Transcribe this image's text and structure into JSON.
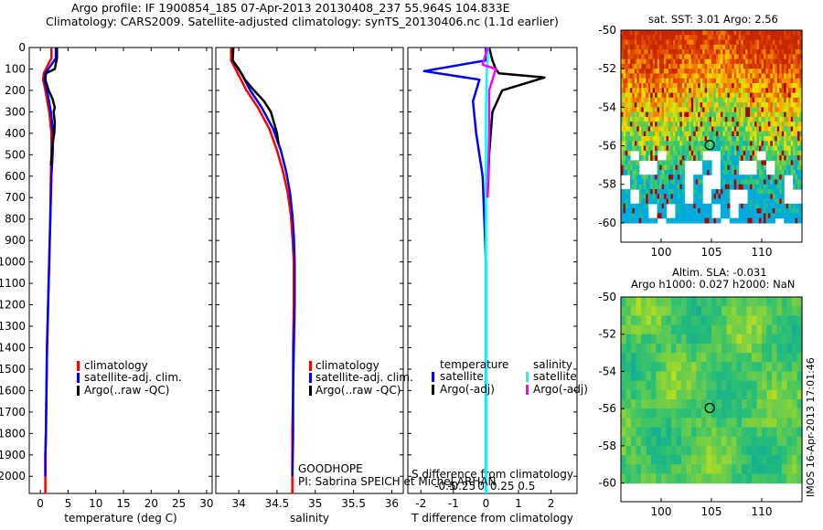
{
  "title": {
    "line1": "Argo profile: IF 1900854_185 07-Apr-2013 20130408_237 55.964S 104.833E",
    "line2": "Climatology: CARS2009. Satellite-adjusted climatology: synTS_20130406.nc (1.1d earlier)"
  },
  "colors": {
    "climatology": "#ff0000",
    "satellite": "#0000ff",
    "argo": "#000000",
    "satellite_diff": "#00ffff",
    "argo_adj_diff": "#ff00ff"
  },
  "pi": {
    "line1": "GOODHOPE",
    "line2": "PI: Sabrina SPEICH et Michel ARHAN"
  },
  "sst_title": "sat. SST: 3.01  Argo: 2.56",
  "sla_title": {
    "line1": "Altim. SLA: -0.031",
    "line2": "Argo h1000: 0.027 h2000: NaN"
  },
  "timestamp": "IMOS 16-Apr-2013 17:01:46",
  "legend_profiles": [
    "climatology",
    "satellite-adj. clim.",
    "Argo(..raw -QC)"
  ],
  "legend_diff": {
    "temp_header": "temperature",
    "sal_header": "salinity",
    "satellite": "satellite",
    "argo_adj": "Argo(-adj)"
  },
  "chart_data": [
    {
      "id": "temp",
      "type": "line",
      "xlabel": "temperature (deg C)",
      "ylabel": "",
      "xlim": [
        -2,
        31
      ],
      "ylim": [
        2080,
        0
      ],
      "xticks": [
        0,
        5,
        10,
        15,
        20,
        25,
        30
      ],
      "yticks": [
        0,
        100,
        200,
        300,
        400,
        500,
        600,
        700,
        800,
        900,
        1000,
        1100,
        1200,
        1300,
        1400,
        1500,
        1600,
        1700,
        1800,
        1900,
        2000
      ],
      "series": [
        {
          "name": "climatology",
          "color": "#ff0000",
          "x": [
            2.0,
            2.0,
            0.6,
            0.5,
            0.9,
            1.6,
            2.0,
            2.0,
            1.9,
            1.8,
            1.6,
            1.4,
            1.2,
            1.1,
            1.0,
            0.9,
            0.9,
            0.9
          ],
          "y": [
            0,
            50,
            120,
            150,
            200,
            300,
            400,
            500,
            600,
            800,
            1000,
            1200,
            1400,
            1600,
            1800,
            1900,
            2000,
            2080
          ]
        },
        {
          "name": "satellite-adj. clim.",
          "color": "#0000ff",
          "x": [
            2.8,
            2.8,
            0.9,
            0.7,
            1.2,
            1.9,
            2.3,
            2.2,
            2.0,
            1.8,
            1.6,
            1.4,
            1.2,
            1.1,
            1.0,
            0.9,
            0.9
          ],
          "y": [
            0,
            50,
            120,
            150,
            200,
            300,
            400,
            500,
            600,
            800,
            1000,
            1200,
            1400,
            1600,
            1800,
            1900,
            2000
          ]
        },
        {
          "name": "Argo(..raw -QC)",
          "color": "#000000",
          "x": [
            3.0,
            3.0,
            2.6,
            1.0,
            0.9,
            1.5,
            2.2,
            2.6,
            2.4,
            2.6,
            2.5,
            2.2,
            2.1,
            1.9
          ],
          "y": [
            0,
            50,
            100,
            120,
            150,
            200,
            240,
            280,
            300,
            350,
            400,
            450,
            500,
            550
          ]
        }
      ]
    },
    {
      "id": "sal",
      "type": "line",
      "xlabel": "salinity",
      "ylabel": "",
      "xlim": [
        33.7,
        36.15
      ],
      "ylim": [
        2080,
        0
      ],
      "xticks": [
        34,
        34.5,
        35,
        35.5,
        36
      ],
      "xtick_labels": [
        "34",
        "34.5",
        "35",
        "35.5",
        "36"
      ],
      "series": [
        {
          "name": "climatology",
          "color": "#ff0000",
          "x": [
            33.9,
            33.9,
            34.0,
            34.1,
            34.25,
            34.4,
            34.5,
            34.58,
            34.64,
            34.68,
            34.7,
            34.72,
            34.72,
            34.71,
            34.71,
            34.7,
            34.7,
            34.7
          ],
          "y": [
            0,
            60,
            130,
            200,
            280,
            380,
            480,
            580,
            680,
            780,
            880,
            1000,
            1200,
            1400,
            1600,
            1800,
            2000,
            2080
          ]
        },
        {
          "name": "satellite-adj. clim.",
          "color": "#0000ff",
          "x": [
            33.92,
            33.92,
            34.05,
            34.15,
            34.3,
            34.45,
            34.55,
            34.62,
            34.67,
            34.7,
            34.72,
            34.73,
            34.73,
            34.72,
            34.71,
            34.71,
            34.7
          ],
          "y": [
            0,
            60,
            130,
            200,
            280,
            380,
            480,
            580,
            680,
            780,
            880,
            1000,
            1200,
            1400,
            1600,
            1800,
            2000
          ]
        },
        {
          "name": "Argo(..raw -QC)",
          "color": "#000000",
          "x": [
            33.93,
            33.92,
            34.0,
            34.08,
            34.2,
            34.33,
            34.42,
            34.5,
            34.52
          ],
          "y": [
            0,
            60,
            100,
            150,
            200,
            250,
            300,
            400,
            450
          ]
        }
      ]
    },
    {
      "id": "diff",
      "type": "line",
      "xlabel": "T difference from climatology",
      "xlabel2": "S difference from climatology",
      "xlim": [
        -2.4,
        2.8
      ],
      "ylim": [
        2080,
        0
      ],
      "xticks": [
        -2,
        -1,
        0,
        1,
        2
      ],
      "xtick_labels": [
        "-2",
        "-1",
        "0",
        "1",
        "2"
      ],
      "sxticks": [
        -1.25,
        -0.75,
        -0.15,
        0.5,
        1.25
      ],
      "sxtick_labels": [
        "-0.5",
        "-0.25",
        "0",
        "0.25",
        "0.5"
      ],
      "series": [
        {
          "name": "temperature satellite",
          "color": "#0000ff",
          "x": [
            0,
            0,
            -1.9,
            -0.2,
            -0.4,
            -0.3,
            -0.1,
            0.0,
            0.0,
            0.0
          ],
          "y": [
            0,
            60,
            110,
            150,
            250,
            400,
            600,
            1000,
            1500,
            2080
          ]
        },
        {
          "name": "temperature Argo(-adj)",
          "color": "#000000",
          "x": [
            0.1,
            0.2,
            0.3,
            0.4,
            1.8,
            0.5,
            0.2,
            0.1,
            0.05
          ],
          "y": [
            0,
            60,
            100,
            120,
            140,
            200,
            300,
            500,
            700
          ]
        },
        {
          "name": "salinity satellite",
          "color": "#00ffff",
          "x": [
            0.06,
            0.05,
            0.02,
            0,
            0,
            0,
            0
          ],
          "y": [
            0,
            60,
            120,
            300,
            600,
            1500,
            2080
          ]
        },
        {
          "name": "salinity Argo(-adj)",
          "color": "#ff00ff",
          "x": [
            0.05,
            -0.1,
            0.3,
            0.1,
            0.1,
            0.05
          ],
          "y": [
            0,
            80,
            100,
            200,
            400,
            700
          ]
        }
      ]
    },
    {
      "id": "sst_map",
      "type": "heatmap",
      "title": "sat. SST: 3.01  Argo: 2.56",
      "xlim": [
        96,
        114
      ],
      "ylim": [
        -61,
        -50
      ],
      "xticks": [
        100,
        105,
        110
      ],
      "yticks": [
        -50,
        -52,
        -54,
        -56,
        -58,
        -60
      ],
      "argo_position": [
        104.833,
        -55.964
      ]
    },
    {
      "id": "sla_map",
      "type": "heatmap",
      "title": "Altim. SLA: -0.031",
      "xlim": [
        96,
        114
      ],
      "ylim": [
        -61,
        -50
      ],
      "xticks": [
        100,
        105,
        110
      ],
      "yticks": [
        -50,
        -52,
        -54,
        -56,
        -58,
        -60
      ],
      "argo_position": [
        104.833,
        -55.964
      ]
    }
  ]
}
